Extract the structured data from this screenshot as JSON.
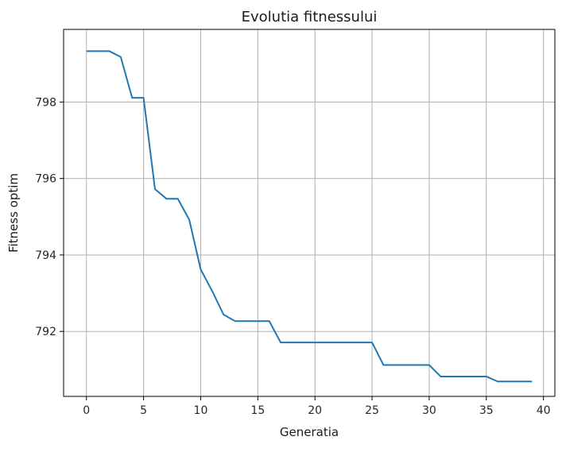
{
  "chart_data": {
    "type": "line",
    "title": "Evolutia fitnessului",
    "xlabel": "Generatia",
    "ylabel": "Fitness optim",
    "xlim": [
      -2,
      41
    ],
    "ylim": [
      790.3,
      799.9
    ],
    "grid": true,
    "x_ticks": [
      0,
      5,
      10,
      15,
      20,
      25,
      30,
      35,
      40
    ],
    "y_ticks": [
      792,
      794,
      796,
      798
    ],
    "series": [
      {
        "color": "#1f77b4",
        "x": [
          0,
          1,
          2,
          3,
          4,
          5,
          6,
          7,
          8,
          9,
          10,
          11,
          12,
          13,
          14,
          15,
          16,
          17,
          18,
          19,
          20,
          21,
          22,
          23,
          24,
          25,
          26,
          27,
          28,
          29,
          30,
          31,
          32,
          33,
          34,
          35,
          36,
          37,
          38,
          39
        ],
        "values": [
          799.33,
          799.33,
          799.33,
          799.18,
          798.11,
          798.11,
          795.72,
          795.47,
          795.47,
          794.92,
          793.62,
          793.06,
          792.44,
          792.27,
          792.27,
          792.27,
          792.27,
          791.71,
          791.71,
          791.71,
          791.71,
          791.71,
          791.71,
          791.71,
          791.71,
          791.71,
          791.12,
          791.12,
          791.12,
          791.12,
          791.12,
          790.82,
          790.82,
          790.82,
          790.82,
          790.82,
          790.69,
          790.69,
          790.69,
          790.69
        ]
      }
    ]
  }
}
